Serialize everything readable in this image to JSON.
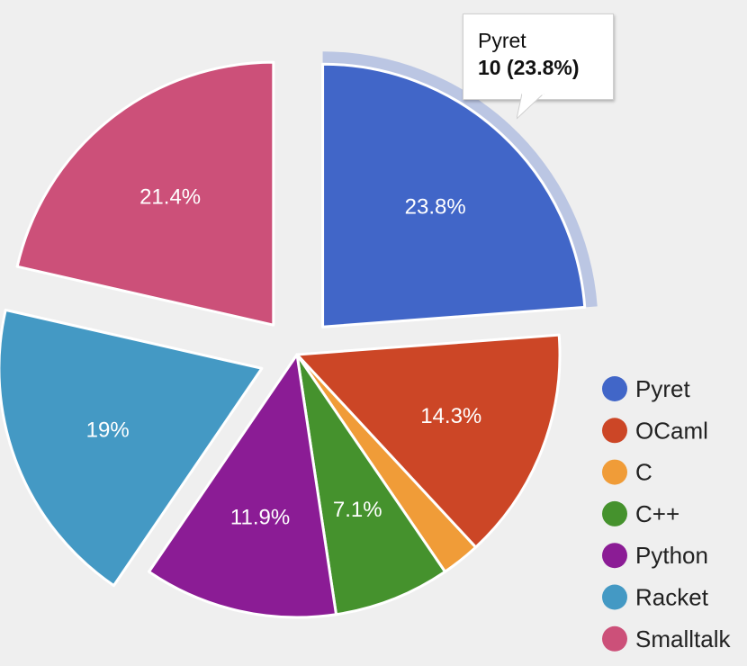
{
  "chart_data": {
    "type": "pie",
    "title": "",
    "categories": [
      "Pyret",
      "OCaml",
      "C",
      "C++",
      "Python",
      "Racket",
      "Smalltalk"
    ],
    "values": [
      10,
      6,
      1,
      3,
      5,
      8,
      9
    ],
    "percent_labels": [
      "23.8%",
      "14.3%",
      "",
      "7.1%",
      "11.9%",
      "19%",
      "21.4%"
    ],
    "colors": [
      "#4166c8",
      "#cc4626",
      "#f09c38",
      "#45922d",
      "#8b1c95",
      "#4499c4",
      "#cc5079"
    ],
    "exploded": [
      true,
      false,
      false,
      false,
      false,
      true,
      true
    ],
    "highlighted_index": 0,
    "legend_position": "right"
  },
  "tooltip": {
    "title": "Pyret",
    "value": "10 (23.8%)"
  }
}
